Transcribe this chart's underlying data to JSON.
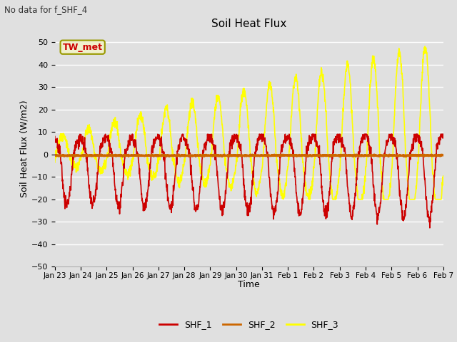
{
  "title": "Soil Heat Flux",
  "subtitle": "No data for f_SHF_4",
  "xlabel": "Time",
  "ylabel": "Soil Heat Flux (W/m2)",
  "ylim": [
    -50,
    55
  ],
  "annotation": "TW_met",
  "plot_bg_color": "#e0e0e0",
  "grid_color": "#ffffff",
  "shf1_color": "#cc0000",
  "shf2_color": "#cc6600",
  "shf3_color": "#ffff00",
  "tick_labels": [
    "Jan 23",
    "Jan 24",
    "Jan 25",
    "Jan 26",
    "Jan 27",
    "Jan 28",
    "Jan 29",
    "Jan 30",
    "Jan 31",
    "Feb 1",
    "Feb 2",
    "Feb 3",
    "Feb 4",
    "Feb 5",
    "Feb 6",
    "Feb 7"
  ],
  "n_points": 1500
}
